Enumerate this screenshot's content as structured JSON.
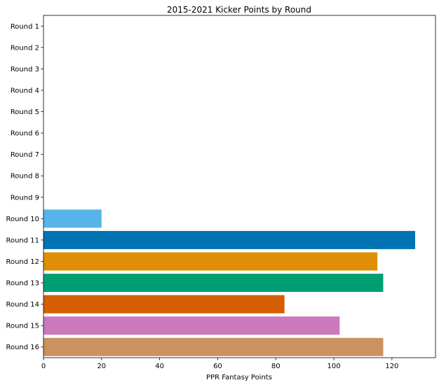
{
  "chart_data": {
    "type": "bar",
    "orientation": "horizontal",
    "title": "2015-2021 Kicker Points by Round",
    "xlabel": "PPR Fantasy Points",
    "ylabel": "",
    "xlim": [
      0,
      135
    ],
    "xticks": [
      0,
      20,
      40,
      60,
      80,
      100,
      120
    ],
    "grid": false,
    "categories": [
      "Round 1",
      "Round 2",
      "Round 3",
      "Round 4",
      "Round 5",
      "Round 6",
      "Round 7",
      "Round 8",
      "Round 9",
      "Round 10",
      "Round 11",
      "Round 12",
      "Round 13",
      "Round 14",
      "Round 15",
      "Round 16"
    ],
    "values": [
      0,
      0,
      0,
      0,
      0,
      0,
      0,
      0,
      0,
      20,
      128,
      115,
      117,
      83,
      102,
      117
    ],
    "colors": [
      "#cccccc",
      "#fbafe4",
      "#949494",
      "#ece133",
      "#56b4e9",
      "#0173b2",
      "#de8f05",
      "#029e73",
      "#d55e00",
      "#56b4e9",
      "#0173b2",
      "#de8f05",
      "#029e73",
      "#d55e00",
      "#cc78bc",
      "#ca9161"
    ]
  }
}
